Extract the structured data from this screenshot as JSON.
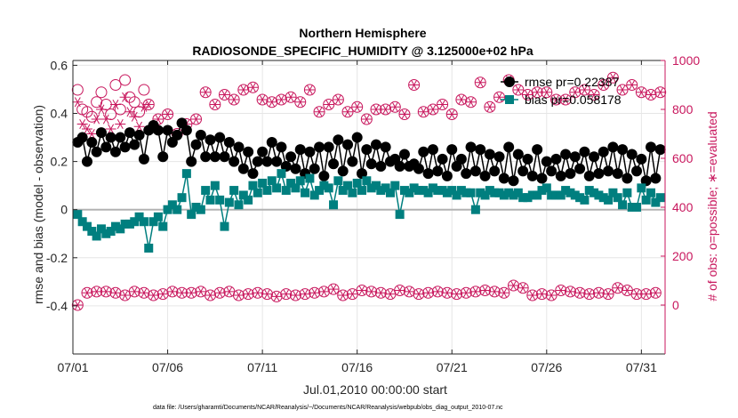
{
  "chart_data": {
    "type": "line",
    "title": "Northern Hemisphere",
    "subtitle": "RADIOSONDE_SPECIFIC_HUMIDITY @ 3.125000e+02 hPa",
    "xlabel": "Jul.01,2010 00:00:00 start",
    "ylabel": "rmse and bias (model - observation)",
    "ylabel_right": "# of obs: o=possible; ∗=evaluated",
    "footnote": "data file: /Users/gharamti/Documents/NCAR/Reanalysis/~/Documents/NCAR/Reanalysis/webpub/obs_diag_output_2010-07.nc",
    "xlim": [
      0.0,
      31.25
    ],
    "ylim": [
      -0.6,
      0.62
    ],
    "ylim_right": [
      -200,
      1000
    ],
    "x_ticks": [
      0,
      5,
      10,
      15,
      20,
      25,
      30
    ],
    "x_tick_labels": [
      "07/01",
      "07/06",
      "07/11",
      "07/16",
      "07/21",
      "07/26",
      "07/31"
    ],
    "y_ticks": [
      -0.4,
      -0.2,
      0,
      0.2,
      0.4,
      0.6
    ],
    "y_tick_labels": [
      "-0.4",
      "-0.2",
      "0",
      "0.2",
      "0.4",
      "0.6"
    ],
    "y_right_ticks": [
      0,
      200,
      400,
      600,
      800,
      1000
    ],
    "y_right_tick_labels": [
      "0",
      "200",
      "400",
      "600",
      "800",
      "1000"
    ],
    "zero_line": 0,
    "grid": true,
    "legend_position": "top-right",
    "x": [
      0.25,
      0.5,
      0.75,
      1.0,
      1.25,
      1.5,
      1.75,
      2.0,
      2.25,
      2.5,
      2.75,
      3.0,
      3.25,
      3.5,
      3.75,
      4.0,
      4.25,
      4.5,
      4.75,
      5.0,
      5.25,
      5.5,
      5.75,
      6.0,
      6.25,
      6.5,
      6.75,
      7.0,
      7.25,
      7.5,
      7.75,
      8.0,
      8.25,
      8.5,
      8.75,
      9.0,
      9.25,
      9.5,
      9.75,
      10.0,
      10.25,
      10.5,
      10.75,
      11.0,
      11.25,
      11.5,
      11.75,
      12.0,
      12.25,
      12.5,
      12.75,
      13.0,
      13.25,
      13.5,
      13.75,
      14.0,
      14.25,
      14.5,
      14.75,
      15.0,
      15.25,
      15.5,
      15.75,
      16.0,
      16.25,
      16.5,
      16.75,
      17.0,
      17.25,
      17.5,
      17.75,
      18.0,
      18.25,
      18.5,
      18.75,
      19.0,
      19.25,
      19.5,
      19.75,
      20.0,
      20.25,
      20.5,
      20.75,
      21.0,
      21.25,
      21.5,
      21.75,
      22.0,
      22.25,
      22.5,
      22.75,
      23.0,
      23.25,
      23.5,
      23.75,
      24.0,
      24.25,
      24.5,
      24.75,
      25.0,
      25.25,
      25.5,
      25.75,
      26.0,
      26.25,
      26.5,
      26.75,
      27.0,
      27.25,
      27.5,
      27.75,
      28.0,
      28.25,
      28.5,
      28.75,
      29.0,
      29.25,
      29.5,
      29.75,
      30.0,
      30.25,
      30.5,
      30.75,
      31.0
    ],
    "series": [
      {
        "name": "rmse",
        "legend": "rmse pr=0.22387",
        "color": "#000000",
        "marker": "circle",
        "axis": "left",
        "values": [
          0.28,
          0.3,
          0.2,
          0.28,
          0.24,
          0.32,
          0.26,
          0.3,
          0.24,
          0.3,
          0.26,
          0.32,
          0.27,
          0.31,
          0.21,
          0.33,
          0.35,
          0.33,
          0.22,
          0.33,
          0.28,
          0.31,
          0.36,
          0.33,
          0.2,
          0.27,
          0.31,
          0.22,
          0.29,
          0.22,
          0.3,
          0.22,
          0.28,
          0.2,
          0.26,
          0.17,
          0.24,
          0.15,
          0.2,
          0.24,
          0.2,
          0.28,
          0.2,
          0.26,
          0.18,
          0.22,
          0.17,
          0.25,
          0.15,
          0.24,
          0.17,
          0.26,
          0.14,
          0.26,
          0.19,
          0.29,
          0.16,
          0.27,
          0.2,
          0.3,
          0.15,
          0.25,
          0.19,
          0.27,
          0.18,
          0.26,
          0.2,
          0.21,
          0.18,
          0.23,
          0.18,
          0.19,
          0.17,
          0.24,
          0.15,
          0.25,
          0.16,
          0.21,
          0.14,
          0.25,
          0.18,
          0.21,
          0.15,
          0.26,
          0.16,
          0.25,
          0.14,
          0.23,
          0.16,
          0.22,
          0.13,
          0.26,
          0.12,
          0.23,
          0.16,
          0.21,
          0.14,
          0.25,
          0.13,
          0.2,
          0.16,
          0.21,
          0.14,
          0.23,
          0.15,
          0.22,
          0.17,
          0.24,
          0.14,
          0.22,
          0.15,
          0.24,
          0.16,
          0.26,
          0.15,
          0.25,
          0.13,
          0.23,
          0.16,
          0.21,
          0.12,
          0.26,
          0.13,
          0.25
        ]
      },
      {
        "name": "bias",
        "legend": "bias pr=0.058178",
        "color": "#007f7f",
        "marker": "square",
        "axis": "left",
        "values": [
          -0.02,
          -0.05,
          -0.07,
          -0.09,
          -0.11,
          -0.08,
          -0.1,
          -0.09,
          -0.07,
          -0.08,
          -0.06,
          -0.06,
          -0.05,
          -0.03,
          -0.05,
          -0.16,
          -0.05,
          -0.03,
          -0.07,
          0.0,
          0.02,
          0.0,
          0.05,
          0.15,
          -0.02,
          0.01,
          0.0,
          0.08,
          0.04,
          0.1,
          0.04,
          -0.07,
          0.03,
          0.08,
          0.02,
          0.06,
          0.04,
          0.1,
          0.07,
          0.11,
          0.08,
          0.12,
          0.09,
          0.15,
          0.08,
          0.11,
          0.09,
          0.12,
          0.07,
          0.13,
          0.06,
          0.08,
          0.1,
          0.09,
          0.02,
          0.12,
          0.08,
          0.1,
          0.07,
          0.11,
          0.08,
          0.12,
          0.09,
          0.1,
          0.08,
          0.09,
          0.07,
          0.1,
          -0.02,
          0.08,
          0.07,
          0.09,
          0.08,
          0.08,
          0.07,
          0.09,
          0.08,
          0.08,
          0.07,
          0.08,
          0.06,
          0.08,
          0.07,
          0.07,
          0.0,
          0.07,
          0.06,
          0.08,
          0.07,
          0.07,
          0.06,
          0.07,
          0.06,
          0.07,
          0.05,
          0.05,
          0.06,
          0.06,
          0.08,
          0.09,
          0.06,
          0.06,
          0.06,
          0.08,
          0.07,
          0.06,
          0.05,
          0.04,
          0.08,
          0.07,
          0.06,
          0.05,
          0.04,
          0.07,
          0.05,
          0.02,
          0.07,
          0.01,
          0.01,
          0.09,
          0.04,
          0.07,
          0.03,
          0.05
        ]
      },
      {
        "name": "obs_possible",
        "legend": "o=possible",
        "color": "#c8175d",
        "marker": "open-circle",
        "axis": "right",
        "values": [
          0,
          65,
          50,
          60,
          55,
          40,
          55,
          45,
          50,
          55,
          40,
          50,
          55,
          45,
          50,
          55,
          40,
          60,
          45,
          50,
          55,
          40,
          50,
          55,
          50,
          45,
          55,
          50,
          40,
          55,
          50,
          45,
          55,
          50,
          40,
          50,
          45,
          55,
          50,
          40,
          45,
          50,
          35,
          50,
          45,
          55,
          40,
          50,
          45,
          60,
          50,
          40,
          55,
          45,
          65,
          50,
          40,
          55,
          45,
          50,
          60,
          45,
          55,
          40,
          50,
          55,
          45,
          50,
          60,
          40,
          55,
          50,
          45,
          60,
          50,
          40,
          55,
          45,
          50,
          60,
          45,
          55,
          50,
          40,
          55,
          45,
          60,
          50,
          55,
          45,
          50,
          90,
          80,
          85,
          70,
          55,
          40,
          50,
          45,
          55,
          40,
          50,
          60,
          45,
          55,
          60,
          50,
          55,
          45,
          60,
          50,
          55,
          45,
          60,
          70,
          50,
          60,
          75,
          45,
          40,
          45,
          55,
          50,
          60
        ],
        "values_head": [
          880,
          800,
          790,
          770,
          830,
          870,
          820,
          780,
          900,
          800,
          920,
          850,
          830,
          790,
          880
        ]
      },
      {
        "name": "obs_evaluated",
        "legend": "∗=evaluated",
        "color": "#c8175d",
        "marker": "asterisk",
        "axis": "right",
        "values": [
          0,
          65,
          50,
          60,
          55,
          40,
          55,
          45,
          50,
          55,
          40,
          50,
          55,
          45,
          50,
          55,
          40,
          60,
          45,
          50,
          55,
          40,
          50,
          55,
          50,
          45,
          55,
          50,
          40,
          55,
          50,
          45,
          55,
          50,
          40,
          50,
          45,
          55,
          50,
          40,
          45,
          50,
          35,
          50,
          45,
          55,
          40,
          50,
          45,
          60,
          50,
          40,
          55,
          45,
          65,
          50,
          40,
          55,
          45,
          50,
          60,
          45,
          55,
          40,
          50,
          55,
          45,
          50,
          60,
          40,
          55,
          50,
          45,
          60,
          50,
          40,
          55,
          45,
          50,
          60,
          45,
          55,
          50,
          40,
          55,
          45,
          60,
          50,
          55,
          45,
          50,
          90,
          80,
          85,
          70,
          55,
          40,
          50,
          45,
          55,
          40,
          50,
          60,
          45,
          55,
          60,
          50,
          55,
          45,
          60,
          50,
          55,
          45,
          60,
          70,
          50,
          60,
          75,
          45,
          40,
          45,
          55,
          50,
          60
        ],
        "values_head": [
          830,
          740,
          720,
          700,
          760,
          800,
          760,
          720,
          820,
          740,
          850,
          790,
          770,
          730,
          810
        ]
      }
    ],
    "upper_obs_x": [
      0.25,
      0.5,
      1.0,
      1.5,
      2.0,
      2.5,
      3.0,
      3.5,
      4.0,
      4.5,
      5.0,
      5.5,
      6.0,
      6.5,
      7.0,
      7.5,
      8.0,
      8.5,
      9.0,
      9.5,
      10.0,
      10.5,
      11.0,
      11.5,
      12.0,
      12.5,
      13.0,
      13.5,
      14.0,
      14.5,
      15.0,
      15.5,
      16.0,
      16.5,
      17.0,
      17.5,
      18.0,
      18.5,
      19.0,
      19.5,
      20.0,
      20.5,
      21.0,
      21.5,
      22.0,
      22.5,
      23.0,
      23.5,
      24.0,
      24.5,
      25.0,
      25.5,
      26.0,
      26.5,
      27.0,
      27.5,
      28.0,
      28.5,
      29.0,
      29.5,
      30.0,
      30.5,
      31.0
    ],
    "upper_obs_values": [
      700,
      720,
      780,
      700,
      680,
      720,
      800,
      760,
      820,
      760,
      780,
      700,
      740,
      760,
      870,
      820,
      860,
      840,
      880,
      890,
      840,
      830,
      840,
      850,
      830,
      880,
      790,
      820,
      840,
      790,
      810,
      760,
      800,
      800,
      810,
      780,
      900,
      790,
      800,
      820,
      780,
      840,
      830,
      910,
      810,
      850,
      920,
      880,
      860,
      870,
      870,
      840,
      840,
      870,
      880,
      860,
      900,
      930,
      880,
      900,
      870,
      860,
      870
    ],
    "legend_entries": [
      "rmse pr=0.22387",
      "bias pr=0.058178"
    ]
  }
}
